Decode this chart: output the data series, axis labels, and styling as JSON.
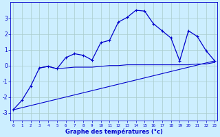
{
  "xlabel": "Graphe des températures (°c)",
  "bg_color": "#cceeff",
  "grid_color": "#aacccc",
  "line_color": "#0000cc",
  "x_ticks": [
    0,
    1,
    2,
    3,
    4,
    5,
    6,
    7,
    8,
    9,
    10,
    11,
    12,
    13,
    14,
    15,
    16,
    17,
    18,
    19,
    20,
    21,
    22,
    23
  ],
  "ylim": [
    -3.5,
    4.0
  ],
  "xlim": [
    -0.3,
    23.3
  ],
  "line1_x": [
    0,
    1,
    2,
    3,
    4,
    5,
    6,
    7,
    8,
    9,
    10,
    11,
    12,
    13,
    14,
    15,
    16,
    17,
    18,
    19,
    20,
    21,
    22,
    23
  ],
  "line1_y": [
    -2.8,
    -2.2,
    -1.3,
    -0.15,
    -0.05,
    -0.2,
    0.5,
    0.75,
    0.65,
    0.35,
    1.45,
    1.6,
    2.75,
    3.05,
    3.5,
    3.45,
    2.65,
    2.2,
    1.75,
    0.3,
    2.2,
    1.85,
    0.95,
    0.3
  ],
  "line2_x": [
    3,
    4,
    5,
    6,
    7,
    8,
    9,
    10,
    11,
    12,
    13,
    14,
    15,
    16,
    17,
    18,
    19,
    20,
    21,
    22,
    23
  ],
  "line2_y": [
    -0.15,
    -0.05,
    -0.2,
    -0.15,
    -0.1,
    -0.1,
    -0.1,
    -0.05,
    0.0,
    0.0,
    0.05,
    0.05,
    0.05,
    0.05,
    0.05,
    0.05,
    0.05,
    0.05,
    0.1,
    0.1,
    0.2
  ],
  "line3_x": [
    0,
    23
  ],
  "line3_y": [
    -2.8,
    0.3
  ],
  "yticks": [
    -3,
    -2,
    -1,
    0,
    1,
    2,
    3
  ]
}
